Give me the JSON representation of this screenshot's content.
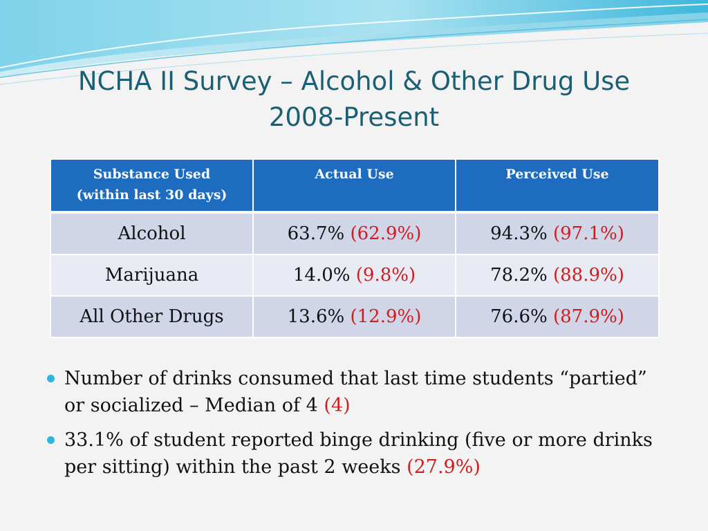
{
  "colors": {
    "title": "#1b5f75",
    "header_bg": "#1e6cc0",
    "row_bg_a": "#d0d5e8",
    "row_bg_b": "#e8ebf4",
    "highlight": "#cf1d1d",
    "bullet": "#2fb5d9"
  },
  "title": {
    "line1": "NCHA II Survey – Alcohol & Other Drug Use",
    "line2": "2008-Present"
  },
  "table": {
    "headers": {
      "substance_line1": "Substance Used",
      "substance_line2": "(within last 30 days)",
      "actual": "Actual Use",
      "perceived": "Perceived Use"
    },
    "rows": [
      {
        "substance": "Alcohol",
        "actual": "63.7%",
        "actual_comparison": "(62.9%)",
        "perceived": "94.3%",
        "perceived_comparison": "(97.1%)"
      },
      {
        "substance": "Marijuana",
        "actual": "14.0%",
        "actual_comparison": "(9.8%)",
        "perceived": "78.2%",
        "perceived_comparison": "(88.9%)"
      },
      {
        "substance": "All Other Drugs",
        "actual": "13.6%",
        "actual_comparison": "(12.9%)",
        "perceived": "76.6%",
        "perceived_comparison": "(87.9%)"
      }
    ]
  },
  "bullets": [
    {
      "text": "Number of drinks consumed that last time students “partied” or socialized – Median of 4",
      "comparison": "(4)"
    },
    {
      "text": "33.1% of student reported binge drinking (five or more drinks per sitting) within the past 2 weeks",
      "comparison": "(27.9%)"
    }
  ]
}
